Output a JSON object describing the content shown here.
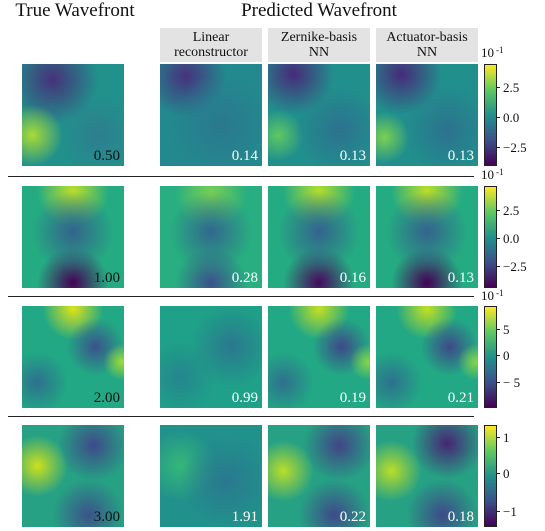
{
  "headers": {
    "true_wavefront": "True Wavefront",
    "predicted_wavefront": "Predicted Wavefront",
    "columns": [
      {
        "line1": "Linear",
        "line2": "reconstructor"
      },
      {
        "line1": "Zernike-basis",
        "line2": "NN"
      },
      {
        "line1": "Actuator-basis",
        "line2": "NN"
      }
    ]
  },
  "rows": [
    {
      "true_value": "0.50",
      "predicted": [
        "0.14",
        "0.13",
        "0.13"
      ],
      "colorbar": {
        "multiplier_base": "10",
        "multiplier_exp": "-1",
        "ticks": [
          "2.5",
          "0.0",
          "−2.5"
        ]
      }
    },
    {
      "true_value": "1.00",
      "predicted": [
        "0.28",
        "0.16",
        "0.13"
      ],
      "colorbar": {
        "multiplier_base": "10",
        "multiplier_exp": "-1",
        "ticks": [
          "2.5",
          "0.0",
          "−2.5"
        ]
      }
    },
    {
      "true_value": "2.00",
      "predicted": [
        "0.99",
        "0.19",
        "0.21"
      ],
      "colorbar": {
        "multiplier_base": "10",
        "multiplier_exp": "-1",
        "ticks": [
          "5",
          "0",
          "− 5"
        ]
      }
    },
    {
      "true_value": "3.00",
      "predicted": [
        "1.91",
        "0.22",
        "0.18"
      ],
      "colorbar": {
        "ticks": [
          "1",
          "0",
          "−1"
        ]
      }
    }
  ],
  "colormap": "viridis"
}
